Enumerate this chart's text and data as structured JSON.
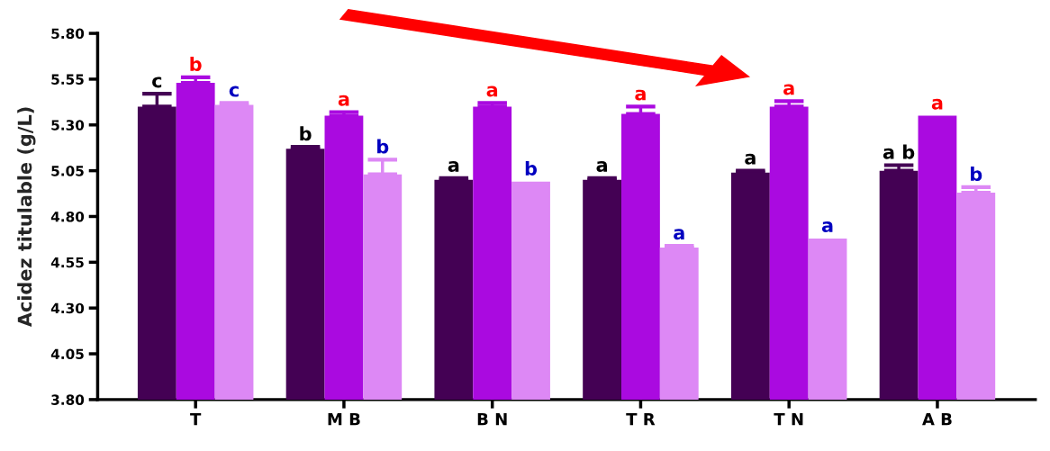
{
  "chart_data": {
    "type": "bar",
    "ylabel": "Acidez titulable (g/L)",
    "categories": [
      "T",
      "M B",
      "B N",
      "T R",
      "T N",
      "A B"
    ],
    "series": [
      {
        "color": "#440154",
        "values": [
          5.4,
          5.17,
          5.0,
          5.0,
          5.04,
          5.05
        ],
        "errors": [
          0.07,
          0.01,
          0.01,
          0.01,
          0.01,
          0.03
        ],
        "value_labels": [
          "c",
          "b",
          "a",
          "a",
          "a",
          "a b"
        ]
      },
      {
        "color": "#aa0ae0",
        "values": [
          5.53,
          5.35,
          5.4,
          5.36,
          5.4,
          5.35
        ],
        "errors": [
          0.03,
          0.02,
          0.02,
          0.04,
          0.03,
          null
        ],
        "value_labels": [
          "b",
          "a",
          "a",
          "a",
          "a",
          "a"
        ]
      },
      {
        "color": "#dd88f5",
        "values": [
          5.41,
          5.03,
          4.99,
          4.63,
          4.68,
          4.93
        ],
        "errors": [
          0.01,
          0.08,
          null,
          0.01,
          null,
          0.03
        ],
        "value_labels": [
          "c",
          "b",
          "b",
          "a",
          "a",
          "b"
        ]
      }
    ],
    "ylim": [
      3.8,
      5.8
    ],
    "yticks": [
      {
        "value": 3.8,
        "label": "3.80"
      },
      {
        "value": 4.05,
        "label": "4.05"
      },
      {
        "value": 4.3,
        "label": "4.30"
      },
      {
        "value": 4.55,
        "label": "4.55"
      },
      {
        "value": 4.8,
        "label": "4.80"
      },
      {
        "value": 5.05,
        "label": "5.05"
      },
      {
        "value": 5.3,
        "label": "5.30"
      },
      {
        "value": 5.55,
        "label": "5.55"
      },
      {
        "value": 5.8,
        "label": "5.80"
      }
    ],
    "grid": false,
    "legend": false
  }
}
